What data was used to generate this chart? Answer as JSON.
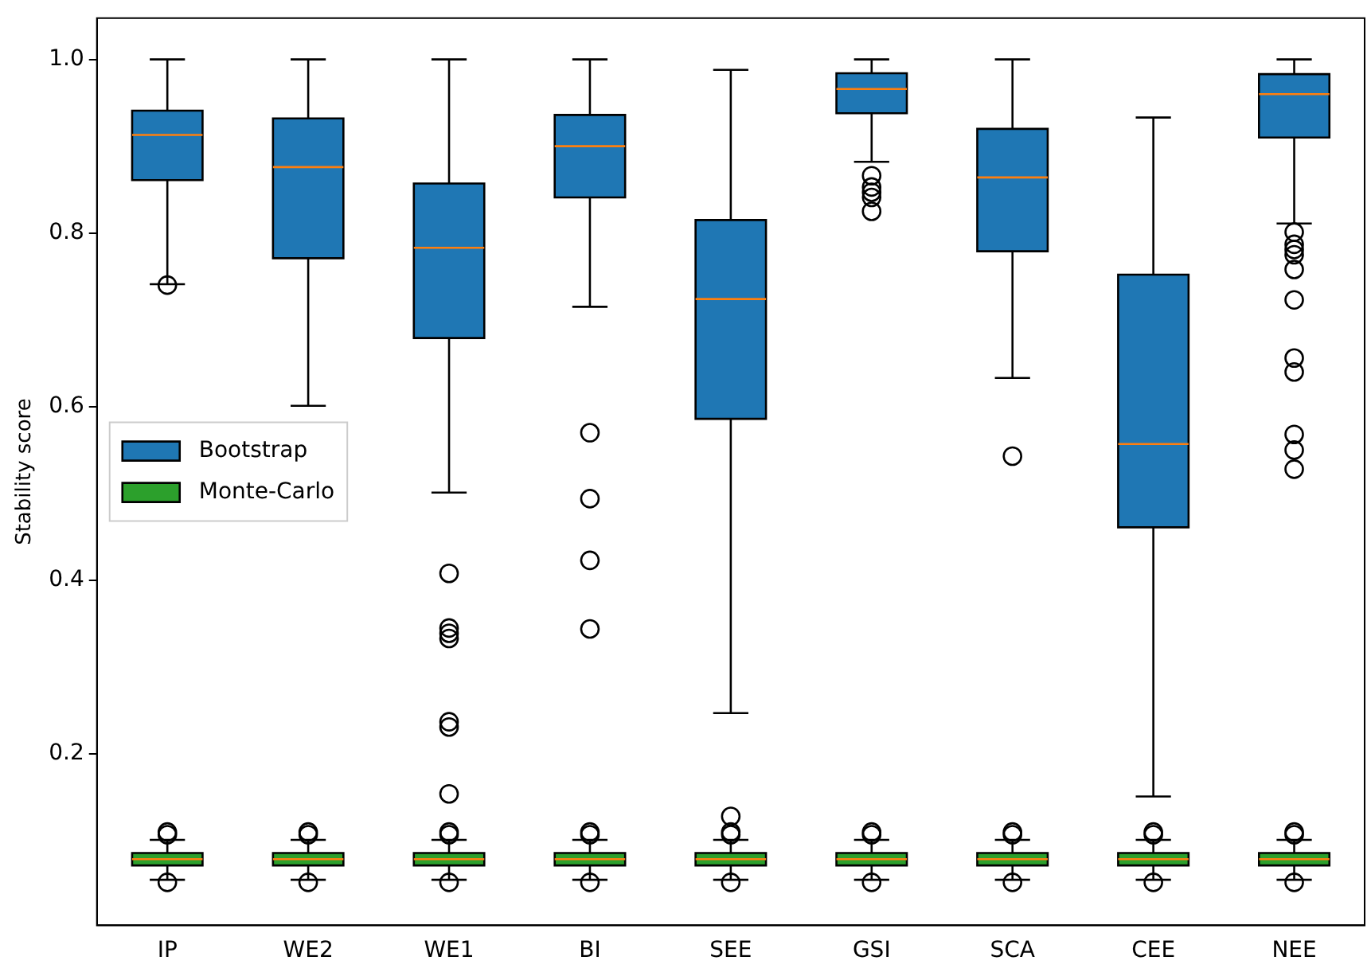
{
  "chart_data": {
    "type": "box",
    "ylabel": "Stability score",
    "categories": [
      "IP",
      "WE2",
      "WE1",
      "BI",
      "SEE",
      "GSI",
      "SCA",
      "CEE",
      "NEE"
    ],
    "ylim": [
      0.0025,
      1.0475
    ],
    "yticks": [
      {
        "value": 0.2,
        "label": "0.2"
      },
      {
        "value": 0.4,
        "label": "0.4"
      },
      {
        "value": 0.6,
        "label": "0.6"
      },
      {
        "value": 0.8,
        "label": "0.8"
      },
      {
        "value": 1,
        "label": "1.0"
      }
    ],
    "grid": false,
    "legend": "left",
    "series": [
      {
        "name": "Bootstrap",
        "color": "#1f77b4",
        "boxes": [
          {
            "low": 0.741,
            "q1": 0.861,
            "median": 0.913,
            "q3": 0.941,
            "high": 1.0,
            "outliers": [
              0.74
            ]
          },
          {
            "low": 0.601,
            "q1": 0.771,
            "median": 0.876,
            "q3": 0.932,
            "high": 1.0
          },
          {
            "low": 0.501,
            "q1": 0.679,
            "median": 0.783,
            "q3": 0.857,
            "high": 1.0,
            "outliers": [
              0.408,
              0.345,
              0.339,
              0.333,
              0.237,
              0.231,
              0.154
            ]
          },
          {
            "low": 0.715,
            "q1": 0.841,
            "median": 0.9,
            "q3": 0.936,
            "high": 1.0,
            "outliers": [
              0.57,
              0.494,
              0.423,
              0.344
            ]
          },
          {
            "low": 0.247,
            "q1": 0.586,
            "median": 0.724,
            "q3": 0.815,
            "high": 0.988
          },
          {
            "low": 0.882,
            "q1": 0.938,
            "median": 0.966,
            "q3": 0.984,
            "high": 1.0,
            "outliers": [
              0.866,
              0.853,
              0.847,
              0.841,
              0.825
            ]
          },
          {
            "low": 0.633,
            "q1": 0.779,
            "median": 0.864,
            "q3": 0.92,
            "high": 1.0,
            "outliers": [
              0.543
            ]
          },
          {
            "low": 0.151,
            "q1": 0.461,
            "median": 0.557,
            "q3": 0.752,
            "high": 0.933
          },
          {
            "low": 0.811,
            "q1": 0.91,
            "median": 0.96,
            "q3": 0.983,
            "high": 1.0,
            "outliers": [
              0.801,
              0.787,
              0.781,
              0.775,
              0.758,
              0.723,
              0.656,
              0.64,
              0.568,
              0.55,
              0.528
            ]
          }
        ]
      },
      {
        "name": "Monte-Carlo",
        "color": "#2ca02c",
        "boxes": [
          {
            "low": 0.055,
            "q1": 0.0715,
            "median": 0.0787,
            "q3": 0.0859,
            "high": 0.101,
            "outliers": [
              0.107,
              0.11,
              0.052
            ]
          },
          {
            "low": 0.055,
            "q1": 0.0715,
            "median": 0.0787,
            "q3": 0.0859,
            "high": 0.101,
            "outliers": [
              0.107,
              0.11,
              0.052
            ]
          },
          {
            "low": 0.055,
            "q1": 0.0715,
            "median": 0.0787,
            "q3": 0.0859,
            "high": 0.101,
            "outliers": [
              0.107,
              0.11,
              0.052
            ]
          },
          {
            "low": 0.055,
            "q1": 0.0715,
            "median": 0.0787,
            "q3": 0.0859,
            "high": 0.101,
            "outliers": [
              0.107,
              0.11,
              0.052
            ]
          },
          {
            "low": 0.055,
            "q1": 0.0715,
            "median": 0.0787,
            "q3": 0.0859,
            "high": 0.101,
            "outliers": [
              0.128,
              0.107,
              0.11,
              0.052
            ]
          },
          {
            "low": 0.055,
            "q1": 0.0715,
            "median": 0.0787,
            "q3": 0.0859,
            "high": 0.101,
            "outliers": [
              0.107,
              0.11,
              0.052
            ]
          },
          {
            "low": 0.055,
            "q1": 0.0715,
            "median": 0.0787,
            "q3": 0.0859,
            "high": 0.101,
            "outliers": [
              0.107,
              0.11,
              0.052
            ]
          },
          {
            "low": 0.055,
            "q1": 0.0715,
            "median": 0.0787,
            "q3": 0.0859,
            "high": 0.101,
            "outliers": [
              0.107,
              0.11,
              0.052
            ]
          },
          {
            "low": 0.055,
            "q1": 0.0715,
            "median": 0.0787,
            "q3": 0.0859,
            "high": 0.101,
            "outliers": [
              0.107,
              0.11,
              0.052
            ]
          }
        ]
      }
    ]
  }
}
